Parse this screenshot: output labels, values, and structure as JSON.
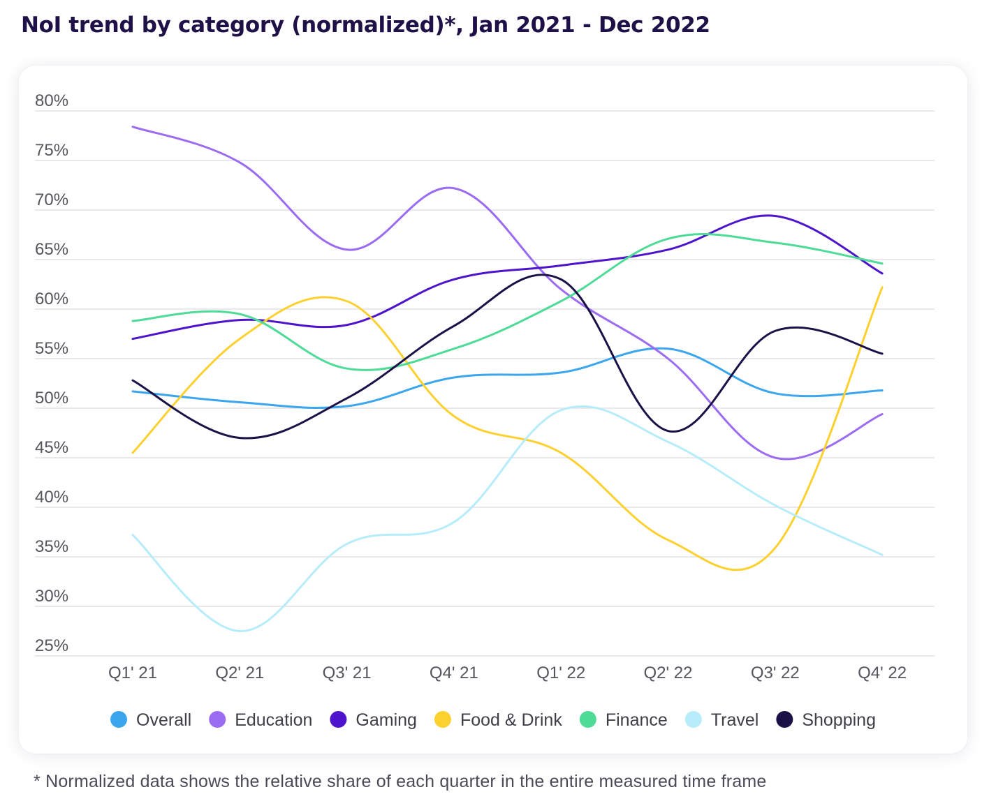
{
  "title": "NoI trend by category (normalized)*, Jan 2021 - Dec 2022",
  "footnote": "* Normalized data shows the relative share of each quarter in the entire measured time frame",
  "chart_data": {
    "type": "line",
    "title": "NoI trend by category (normalized)*, Jan 2021 - Dec 2022",
    "xlabel": "",
    "ylabel": "",
    "categories": [
      "Q1' 21",
      "Q2' 21",
      "Q3' 21",
      "Q4' 21",
      "Q1' 22",
      "Q2' 22",
      "Q3' 22",
      "Q4' 22"
    ],
    "ylim": [
      25,
      80
    ],
    "yticks": [
      25,
      30,
      35,
      40,
      45,
      50,
      55,
      60,
      65,
      70,
      75,
      80
    ],
    "ytick_suffix": "%",
    "grid": true,
    "legend_position": "bottom",
    "series": [
      {
        "name": "Overall",
        "color": "#3ba6ee",
        "values": [
          51.7,
          50.6,
          50.2,
          53.1,
          53.6,
          56.0,
          51.5,
          51.8
        ]
      },
      {
        "name": "Education",
        "color": "#9b6bf2",
        "values": [
          78.4,
          74.8,
          66.0,
          72.2,
          62.0,
          55.0,
          45.0,
          49.4
        ]
      },
      {
        "name": "Gaming",
        "color": "#4d14cc",
        "values": [
          57.0,
          58.9,
          58.4,
          63.0,
          64.4,
          66.0,
          69.4,
          63.6
        ]
      },
      {
        "name": "Food & Drink",
        "color": "#fcd12f",
        "values": [
          45.5,
          57.0,
          60.8,
          49.2,
          45.5,
          36.7,
          35.9,
          62.2
        ]
      },
      {
        "name": "Finance",
        "color": "#4edb97",
        "values": [
          58.8,
          59.5,
          54.0,
          56.0,
          60.8,
          67.1,
          66.7,
          64.6
        ]
      },
      {
        "name": "Travel",
        "color": "#b7ecfa",
        "values": [
          37.2,
          27.5,
          36.3,
          38.5,
          49.8,
          46.6,
          40.2,
          35.2
        ]
      },
      {
        "name": "Shopping",
        "color": "#1b1147",
        "values": [
          52.8,
          47.0,
          51.0,
          58.3,
          63.0,
          47.7,
          57.8,
          55.5
        ]
      }
    ]
  }
}
